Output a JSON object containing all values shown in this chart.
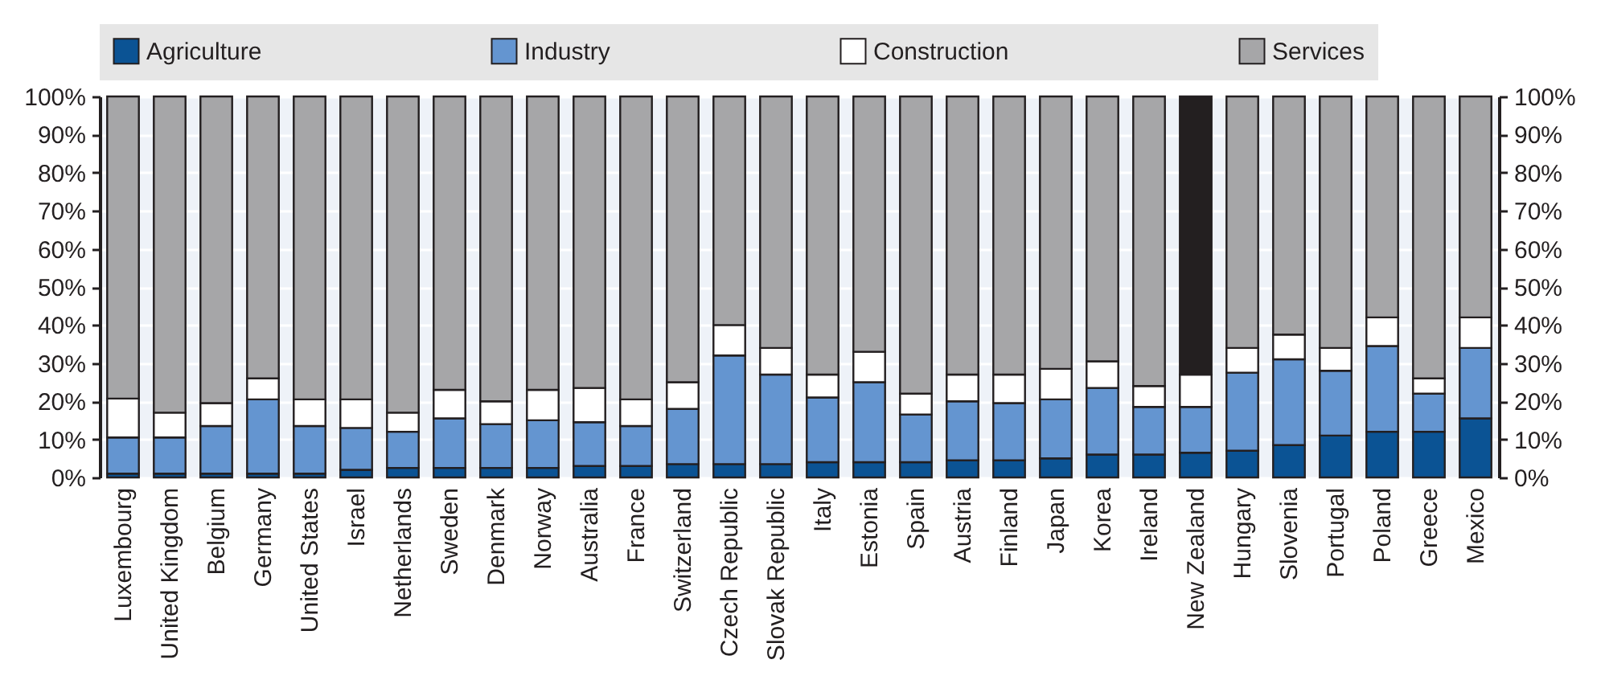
{
  "chart_data": {
    "type": "bar",
    "stacked": true,
    "legend": "top",
    "grid": "y",
    "categories": [
      "Luxembourg",
      "United Kingdom",
      "Belgium",
      "Germany",
      "United States",
      "Israel",
      "Netherlands",
      "Sweden",
      "Denmark",
      "Norway",
      "Australia",
      "France",
      "Switzerland",
      "Czech Republic",
      "Slovak Republic",
      "Italy",
      "Estonia",
      "Spain",
      "Austria",
      "Finland",
      "Japan",
      "Korea",
      "Ireland",
      "New Zealand",
      "Hungary",
      "Slovenia",
      "Portugal",
      "Poland",
      "Greece",
      "Mexico"
    ],
    "series": [
      {
        "name": "Agriculture",
        "color": "#0b5394",
        "values": [
          1,
          1,
          1,
          1,
          1,
          2,
          2.5,
          2.5,
          2.5,
          2.5,
          3,
          3,
          3.5,
          3.5,
          3.5,
          4,
          4,
          4,
          4.5,
          4.5,
          5,
          6,
          6,
          6.5,
          7,
          8.5,
          11,
          12,
          12,
          15.5
        ]
      },
      {
        "name": "Industry",
        "color": "#6495d0",
        "values": [
          9.5,
          9.5,
          12.5,
          19.5,
          12.5,
          11,
          9.5,
          13,
          11.5,
          12.5,
          11.5,
          10.5,
          14.5,
          28.5,
          23.5,
          17,
          21,
          12.5,
          15.5,
          15,
          15.5,
          17.5,
          12.5,
          12,
          20.5,
          22.5,
          17,
          22.5,
          10,
          18.5
        ]
      },
      {
        "name": "Construction",
        "color": "#ffffff",
        "values": [
          10.2,
          6.5,
          6,
          5.5,
          7,
          7.5,
          5,
          7.5,
          6,
          8,
          9,
          7,
          7,
          8,
          7,
          6,
          8,
          5.5,
          7,
          7.5,
          8,
          7,
          5.5,
          8.5,
          6.5,
          6.5,
          6,
          7.5,
          4,
          8
        ]
      },
      {
        "name": "Services",
        "color": "#a6a6a8",
        "colors": [
          "#a6a6a8",
          "#a6a6a8",
          "#a6a6a8",
          "#a6a6a8",
          "#a6a6a8",
          "#a6a6a8",
          "#a6a6a8",
          "#a6a6a8",
          "#a6a6a8",
          "#a6a6a8",
          "#a6a6a8",
          "#a6a6a8",
          "#a6a6a8",
          "#a6a6a8",
          "#a6a6a8",
          "#a6a6a8",
          "#a6a6a8",
          "#a6a6a8",
          "#a6a6a8",
          "#a6a6a8",
          "#a6a6a8",
          "#a6a6a8",
          "#a6a6a8",
          "#231f20",
          "#a6a6a8",
          "#a6a6a8",
          "#a6a6a8",
          "#a6a6a8",
          "#a6a6a8",
          "#a6a6a8"
        ],
        "values": [
          79.3,
          83,
          80.5,
          74,
          79.5,
          79.5,
          83,
          77,
          80,
          77,
          76.5,
          79.5,
          75,
          60,
          66,
          73,
          67,
          78,
          73,
          73,
          71.5,
          69.5,
          76,
          73,
          66,
          62.5,
          66,
          58,
          74,
          58
        ]
      }
    ],
    "ylim": [
      0,
      100
    ],
    "yticks": [
      {
        "value": 0,
        "label": "0%"
      },
      {
        "value": 10,
        "label": "10%"
      },
      {
        "value": 20,
        "label": "20%"
      },
      {
        "value": 30,
        "label": "30%"
      },
      {
        "value": 40,
        "label": "40%"
      },
      {
        "value": 50,
        "label": "50%"
      },
      {
        "value": 60,
        "label": "60%"
      },
      {
        "value": 70,
        "label": "70%"
      },
      {
        "value": 80,
        "label": "80%"
      },
      {
        "value": 90,
        "label": "90%"
      },
      {
        "value": 100,
        "label": "100%"
      }
    ],
    "y2lim": [
      0,
      100
    ],
    "y2ticks": [
      {
        "value": 0,
        "label": "0%"
      },
      {
        "value": 10,
        "label": "10%"
      },
      {
        "value": 20,
        "label": "20%"
      },
      {
        "value": 30,
        "label": "30%"
      },
      {
        "value": 40,
        "label": "40%"
      },
      {
        "value": 50,
        "label": "50%"
      },
      {
        "value": 60,
        "label": "60%"
      },
      {
        "value": 70,
        "label": "70%"
      },
      {
        "value": 80,
        "label": "80%"
      },
      {
        "value": 90,
        "label": "90%"
      },
      {
        "value": 100,
        "label": "100%"
      }
    ]
  }
}
